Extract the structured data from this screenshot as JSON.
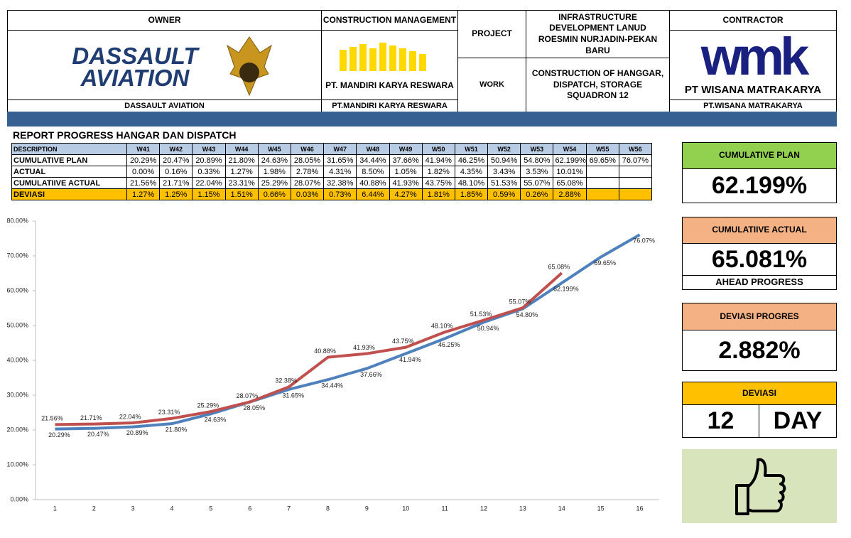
{
  "header": {
    "owner": {
      "label": "OWNER",
      "logo_top": "DASSAULT",
      "logo_bottom": "AVIATION",
      "caption": "DASSAULT AVIATION"
    },
    "construction_management": {
      "label": "CONSTRUCTION MANAGEMENT",
      "logo_text": "PT. MANDIRI KARYA RESWARA",
      "caption": "PT.MANDIRI KARYA RESWARA"
    },
    "project": {
      "label": "PROJECT",
      "text": "INFRASTRUCTURE DEVELOPMENT LANUD ROESMIN NURJADIN-PEKAN BARU"
    },
    "work": {
      "label": "WORK",
      "text": "CONSTRUCTION OF HANGGAR, DISPATCH, STORAGE SQUADRON 12"
    },
    "contractor": {
      "label": "CONTRACTOR",
      "logo_mark": "wmk",
      "logo_text": "PT WISANA MATRAKARYA",
      "caption": "PT.WISANA MATRAKARYA"
    }
  },
  "report_title": "REPORT PROGRESS HANGAR DAN DISPATCH",
  "table": {
    "columns": [
      "DESCRIPTION",
      "W41",
      "W42",
      "W43",
      "W44",
      "W45",
      "W46",
      "W47",
      "W48",
      "W49",
      "W50",
      "W51",
      "W52",
      "W53",
      "W54",
      "W55",
      "W56"
    ],
    "rows": [
      {
        "label": "CUMULATIVE PLAN",
        "cells": [
          "20.29%",
          "20.47%",
          "20.89%",
          "21.80%",
          "24.63%",
          "28.05%",
          "31.65%",
          "34.44%",
          "37.66%",
          "41.94%",
          "46.25%",
          "50.94%",
          "54.80%",
          "62.199%",
          "69.65%",
          "76.07%"
        ]
      },
      {
        "label": "ACTUAL",
        "cells": [
          "0.00%",
          "0.16%",
          "0.33%",
          "1.27%",
          "1.98%",
          "2.78%",
          "4.31%",
          "8.50%",
          "1.05%",
          "1.82%",
          "4.35%",
          "3.43%",
          "3.53%",
          "10.01%",
          null,
          null
        ]
      },
      {
        "label": "CUMULATIIVE ACTUAL",
        "cells": [
          "21.56%",
          "21.71%",
          "22.04%",
          "23.31%",
          "25.29%",
          "28.07%",
          "32.38%",
          "40.88%",
          "41.93%",
          "43.75%",
          "48.10%",
          "51.53%",
          "55.07%",
          "65.08%",
          null,
          null
        ]
      },
      {
        "label": "DEVIASI",
        "cells": [
          "1.27%",
          "1.25%",
          "1.15%",
          "1.51%",
          "0.66%",
          "0.03%",
          "0.73%",
          "6.44%",
          "4.27%",
          "1.81%",
          "1.85%",
          "0.59%",
          "0.26%",
          "2.88%",
          null,
          null
        ]
      }
    ]
  },
  "chart_data": {
    "type": "line",
    "categories": [
      1,
      2,
      3,
      4,
      5,
      6,
      7,
      8,
      9,
      10,
      11,
      12,
      13,
      14,
      15,
      16
    ],
    "series": [
      {
        "name": "CUMULATIVE PLAN",
        "color": "#4f81bd",
        "values": [
          20.29,
          20.47,
          20.89,
          21.8,
          24.63,
          28.05,
          31.65,
          34.44,
          37.66,
          41.94,
          46.25,
          50.94,
          54.8,
          62.199,
          69.65,
          76.07
        ],
        "value_labels": [
          "20.29%",
          "20.47%",
          "20.89%",
          "21.80%",
          "24.63%",
          "28.05%",
          "31.65%",
          "34.44%",
          "37.66%",
          "41.94%",
          "46.25%",
          "50.94%",
          "54.80%",
          "62.199%",
          "69.65%",
          "76.07%"
        ]
      },
      {
        "name": "CUMULATIIVE ACTUAL",
        "color": "#c0504d",
        "values": [
          21.56,
          21.71,
          22.04,
          23.31,
          25.29,
          28.07,
          32.38,
          40.88,
          41.93,
          43.75,
          48.1,
          51.53,
          55.07,
          65.08,
          null,
          null
        ],
        "value_labels": [
          "21.56%",
          "21.71%",
          "22.04%",
          "23.31%",
          "25.29%",
          "28.07%",
          "32.38%",
          "40.88%",
          "41.93%",
          "43.75%",
          "48.10%",
          "51.53%",
          "55.07%",
          "65.08%",
          null,
          null
        ]
      }
    ],
    "ylim": [
      0,
      80
    ],
    "yticks": [
      {
        "value": 0,
        "label": "0.00%"
      },
      {
        "value": 10,
        "label": "10.00%"
      },
      {
        "value": 20,
        "label": "20.00%"
      },
      {
        "value": 30,
        "label": "30.00%"
      },
      {
        "value": 40,
        "label": "40.00%"
      },
      {
        "value": 50,
        "label": "50.00%"
      },
      {
        "value": 60,
        "label": "60.00%"
      },
      {
        "value": 70,
        "label": "70.00%"
      },
      {
        "value": 80,
        "label": "80.00%"
      }
    ],
    "grid": false
  },
  "panels": {
    "plan": {
      "title": "CUMULATIVE PLAN",
      "value": "62.199%"
    },
    "actual": {
      "title": "CUMULATIIVE ACTUAL",
      "value": "65.081%",
      "note": "AHEAD PROGRESS"
    },
    "deviation": {
      "title": "DEVIASI PROGRES",
      "value": "2.882%"
    },
    "days": {
      "title": "DEVIASI",
      "value": "12",
      "unit": "DAY"
    }
  }
}
